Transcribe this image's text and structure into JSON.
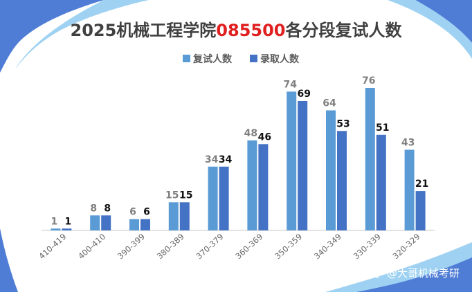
{
  "title": {
    "prefix": "2025机械工程学院",
    "highlight": "085500",
    "suffix": "各分段复试人数"
  },
  "watermark": "知乎 @大哥机械考研",
  "colors": {
    "series_a": "#5b9bd5",
    "series_b": "#4472c4",
    "highlight": "#e02020",
    "title": "#404040",
    "frame": "#4f7dd6",
    "frame_light": "#9fd2f2"
  },
  "chart_data": {
    "type": "bar",
    "title": "2025机械工程学院085500各分段复试人数",
    "categories": [
      "410-419",
      "400-410",
      "390-399",
      "380-389",
      "370-379",
      "360-369",
      "350-359",
      "340-349",
      "330-339",
      "320-329"
    ],
    "series": [
      {
        "name": "复试人数",
        "values": [
          1,
          8,
          6,
          15,
          34,
          48,
          74,
          64,
          76,
          43
        ]
      },
      {
        "name": "录取人数",
        "values": [
          1,
          8,
          6,
          15,
          34,
          46,
          69,
          53,
          51,
          21
        ]
      }
    ],
    "ylim": [
      0,
      85
    ],
    "grid": false,
    "legend": "top-center"
  }
}
